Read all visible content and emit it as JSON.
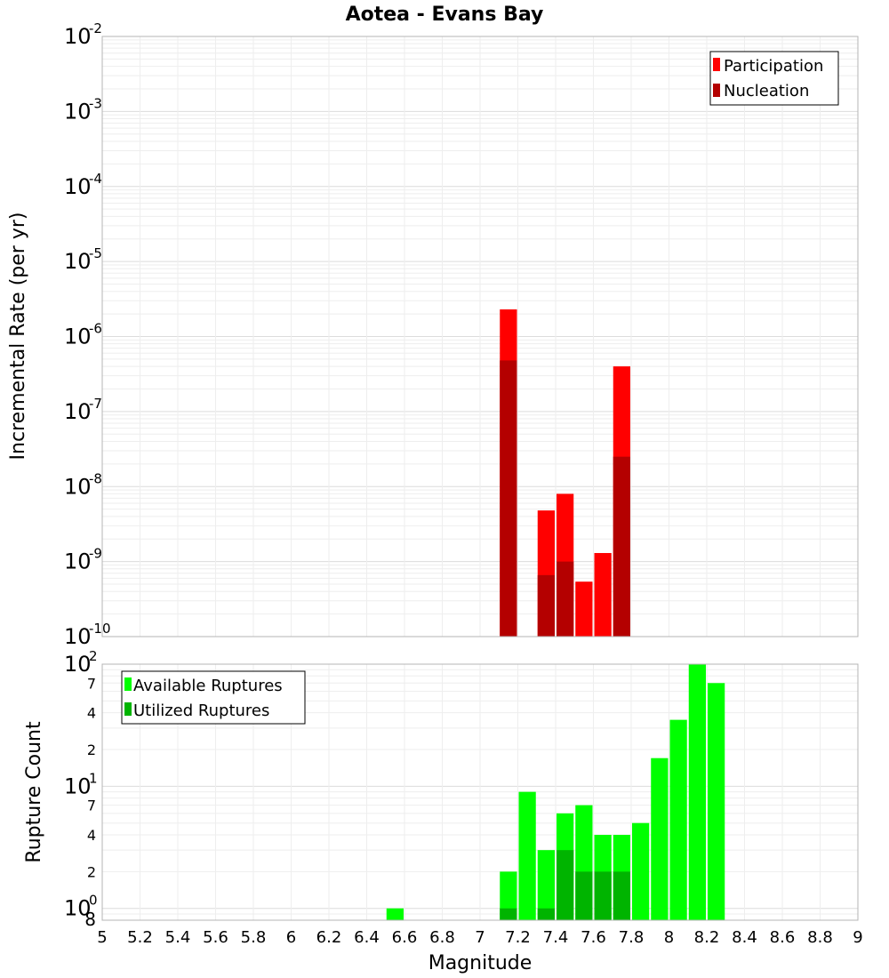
{
  "chart_data": [
    {
      "type": "bar",
      "title": "Aotea - Evans Bay",
      "ylabel": "Incremental Rate (per yr)",
      "xlabel": "",
      "xlim": [
        5,
        9
      ],
      "ylim": [
        1e-10,
        0.01
      ],
      "yscale": "log",
      "grid": true,
      "legend_position": "top-right",
      "bin_width": 0.1,
      "y_exponent_labels": [
        "-10",
        "-9",
        "-8",
        "-7",
        "-6",
        "-5",
        "-4",
        "-3",
        "-2"
      ],
      "y_base_label": "10",
      "series": [
        {
          "name": "Participation",
          "color": "#ff0000",
          "x": [
            7.15,
            7.35,
            7.45,
            7.55,
            7.65,
            7.75
          ],
          "values": [
            2.3e-06,
            4.8e-09,
            8e-09,
            5.4e-10,
            1.3e-09,
            4e-07
          ]
        },
        {
          "name": "Nucleation",
          "color": "#b40000",
          "x": [
            7.15,
            7.35,
            7.45,
            7.55,
            7.65,
            7.75
          ],
          "values": [
            4.8e-07,
            6.6e-10,
            1e-09,
            1e-10,
            1e-10,
            2.5e-08
          ]
        }
      ]
    },
    {
      "type": "bar",
      "title": "",
      "ylabel": "Rupture Count",
      "xlabel": "Magnitude",
      "xlim": [
        5,
        9
      ],
      "ylim": [
        0.8,
        100
      ],
      "yscale": "log",
      "grid": true,
      "legend_position": "top-left",
      "bin_width": 0.1,
      "x_tick_labels": [
        "5",
        "5.2",
        "5.4",
        "5.6",
        "5.8",
        "6",
        "6.2",
        "6.4",
        "6.6",
        "6.8",
        "7",
        "7.2",
        "7.4",
        "7.6",
        "7.8",
        "8",
        "8.2",
        "8.4",
        "8.6",
        "8.8",
        "9"
      ],
      "y_major_ticks": [
        {
          "value": 1,
          "base": "10",
          "exp": "0"
        },
        {
          "value": 10,
          "base": "10",
          "exp": "1"
        },
        {
          "value": 100,
          "base": "10",
          "exp": "2"
        }
      ],
      "y_minor_ticks": [
        {
          "value": 0.8,
          "label": "8"
        },
        {
          "value": 2,
          "label": "2"
        },
        {
          "value": 4,
          "label": "4"
        },
        {
          "value": 7,
          "label": "7"
        },
        {
          "value": 20,
          "label": "2"
        },
        {
          "value": 40,
          "label": "4"
        },
        {
          "value": 70,
          "label": "7"
        }
      ],
      "series": [
        {
          "name": "Available Ruptures",
          "color": "#00ff00",
          "x": [
            6.55,
            7.15,
            7.25,
            7.35,
            7.45,
            7.55,
            7.65,
            7.75,
            7.85,
            7.95,
            8.05,
            8.15,
            8.25
          ],
          "values": [
            1,
            2,
            9,
            3,
            6,
            7,
            4,
            4,
            5,
            17,
            35,
            100,
            70
          ]
        },
        {
          "name": "Utilized Ruptures",
          "color": "#00b400",
          "x": [
            7.15,
            7.35,
            7.45,
            7.55,
            7.65,
            7.75
          ],
          "values": [
            1,
            1,
            3,
            2,
            2,
            2
          ]
        }
      ]
    }
  ]
}
